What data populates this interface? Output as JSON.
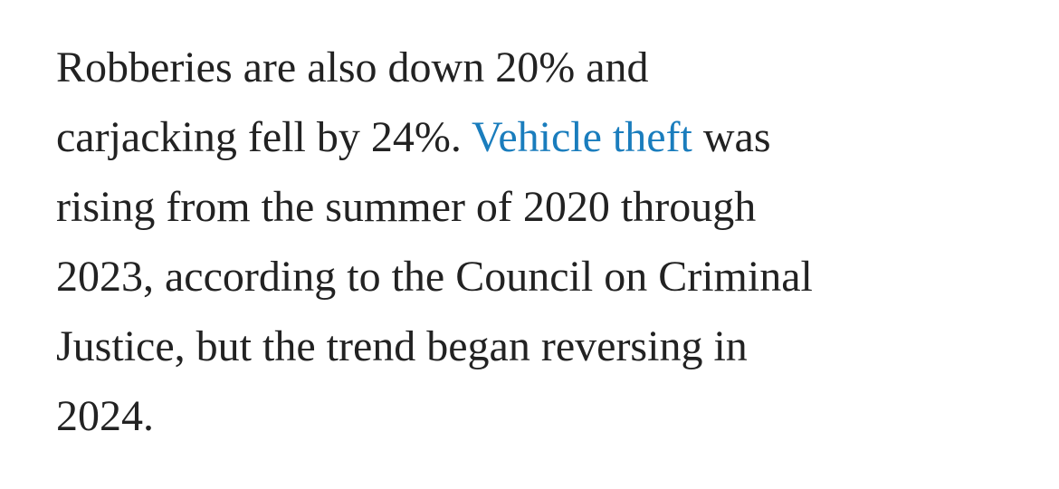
{
  "paragraph": {
    "line_1": "Robberies are also down 20% and",
    "line_2_before": "carjacking fell by 24%.",
    "line_2_link": "Vehicle theft",
    "line_2_after": "was",
    "line_3": "rising from the summer of 2020 through",
    "line_4": "2023, according to the Council on Criminal",
    "line_5": "Justice, but the trend began reversing in",
    "line_6": "2024."
  }
}
